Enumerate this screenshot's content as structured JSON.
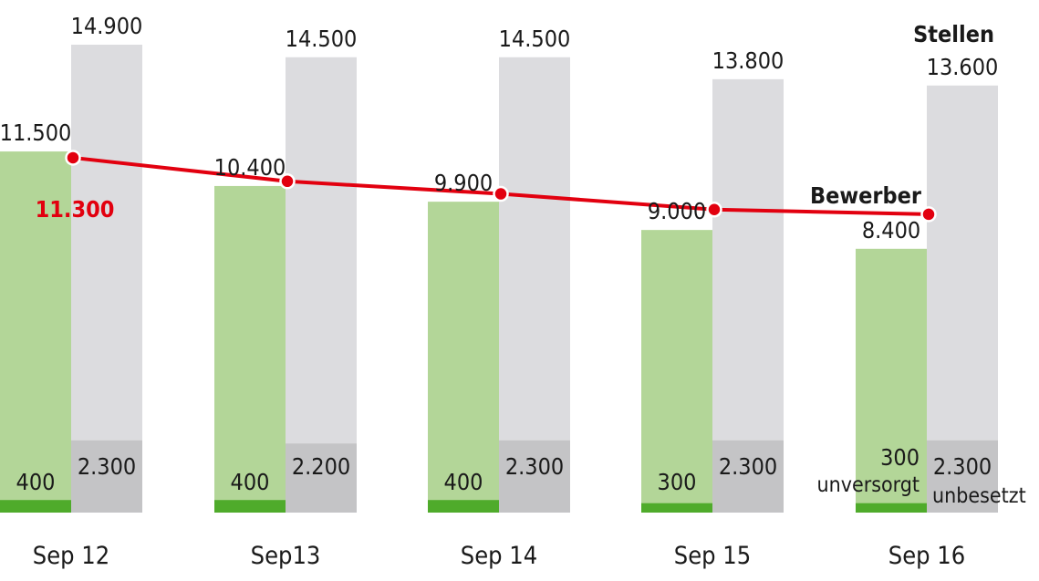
{
  "chart_data": {
    "type": "bar",
    "categories": [
      "Sep 12",
      "Sep13",
      "Sep 14",
      "Sep 15",
      "Sep 16"
    ],
    "series": [
      {
        "name": "Bewerber",
        "values": [
          11500,
          10400,
          9900,
          9000,
          8400
        ],
        "value_labels": [
          "11.500",
          "10.400",
          "9.900",
          "9.000",
          "8.400"
        ]
      },
      {
        "name": "Stellen",
        "values": [
          14900,
          14500,
          14500,
          13800,
          13600
        ],
        "value_labels": [
          "14.900",
          "14.500",
          "14.500",
          "13.800",
          "13.600"
        ]
      },
      {
        "name": "unversorgt",
        "values": [
          400,
          400,
          400,
          300,
          300
        ],
        "value_labels": [
          "400",
          "400",
          "400",
          "300",
          "300"
        ]
      },
      {
        "name": "unbesetzt",
        "values": [
          2300,
          2200,
          2300,
          2300,
          2300
        ],
        "value_labels": [
          "2.300",
          "2.200",
          "2.300",
          "2.300",
          "2.300"
        ]
      },
      {
        "type": "line",
        "values": [
          11300,
          10550,
          10150,
          9650,
          9500
        ]
      }
    ],
    "annotations": [
      "11.300"
    ],
    "ylim": [
      0,
      15000
    ],
    "grid": false,
    "colors": {
      "bewerber": "#b3d698",
      "stellen": "#dcdcdf",
      "unversorgt": "#4fab2b",
      "unbesetzt": "#c4c4c6",
      "line": "#e2000f",
      "text": "#1a1a1a",
      "red_label": "#e2000f"
    }
  }
}
